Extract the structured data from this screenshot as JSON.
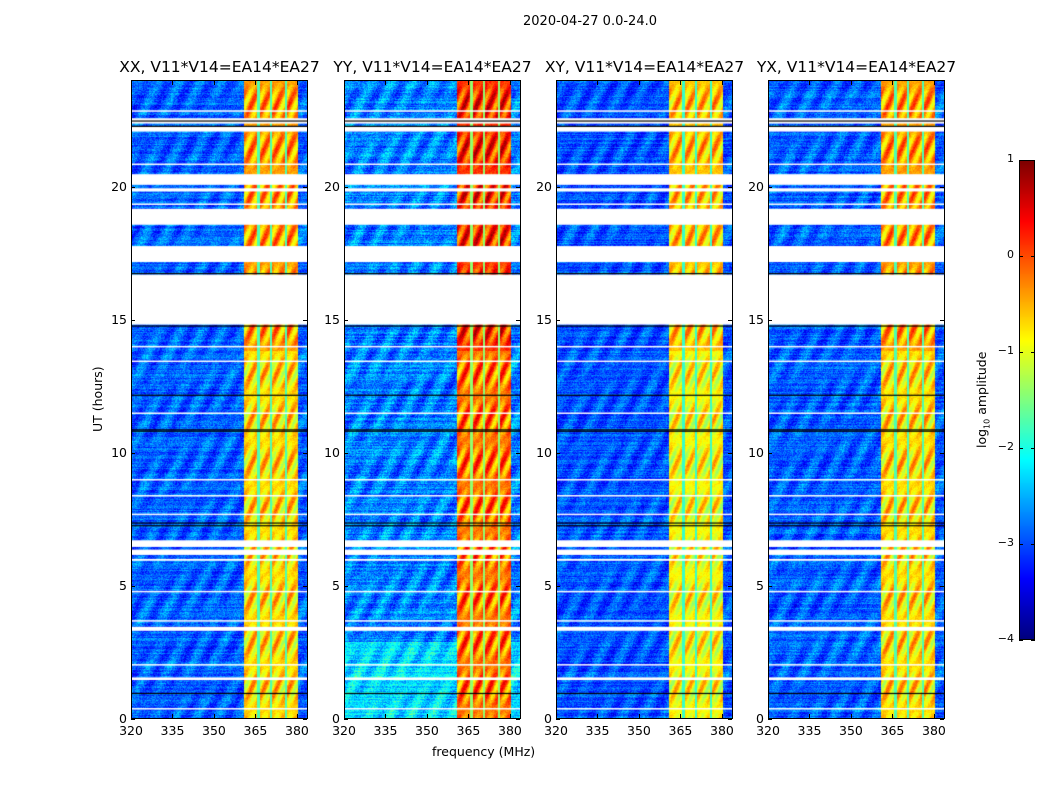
{
  "chart_data": {
    "type": "heatmap",
    "title": "2020-04-27 0.0-24.0",
    "xlabel": "frequency (MHz)",
    "ylabel": "UT (hours)",
    "xlim": [
      320,
      384
    ],
    "ylim": [
      0,
      24
    ],
    "xticks": [
      320,
      335,
      350,
      365,
      380
    ],
    "yticks": [
      0,
      5,
      10,
      15,
      20
    ],
    "panels": [
      {
        "title": "XX, V11*V14=EA14*EA27",
        "level": 1.0
      },
      {
        "title": "YY, V11*V14=EA14*EA27",
        "level": 1.15
      },
      {
        "title": "XY, V11*V14=EA14*EA27",
        "level": 0.95
      },
      {
        "title": "YX, V11*V14=EA14*EA27",
        "level": 1.0
      }
    ],
    "bright_band_mhz": [
      360.4,
      380
    ],
    "band_subchannel_edges_mhz": [
      365.5,
      370,
      375.6
    ],
    "background_log10_amplitude": -2.9,
    "band_log10_amplitude": -0.6,
    "flagged_hours": [
      [
        22.85,
        22.9
      ],
      [
        22.4,
        22.6
      ],
      [
        22.1,
        22.3
      ],
      [
        20.85,
        20.9
      ],
      [
        20.1,
        20.5
      ],
      [
        19.85,
        19.97
      ],
      [
        19.35,
        19.4
      ],
      [
        18.6,
        19.2
      ],
      [
        17.2,
        17.8
      ],
      [
        14.85,
        16.73
      ],
      [
        14.0,
        14.05
      ],
      [
        13.45,
        13.5
      ],
      [
        11.5,
        11.55
      ],
      [
        9.0,
        9.05
      ],
      [
        8.4,
        8.45
      ],
      [
        7.7,
        7.75
      ],
      [
        6.5,
        6.75
      ],
      [
        6.2,
        6.4
      ],
      [
        5.98,
        6.05
      ],
      [
        4.8,
        4.85
      ],
      [
        3.7,
        3.75
      ],
      [
        3.35,
        3.5
      ],
      [
        2.05,
        2.1
      ],
      [
        1.5,
        1.6
      ],
      [
        0.4,
        0.45
      ]
    ],
    "black_lines_hours": [
      22.5,
      22.3,
      16.77,
      14.8,
      12.2,
      10.9,
      10.85,
      7.4,
      7.3,
      1.0
    ],
    "colorbar": {
      "label": "log10 amplitude",
      "label_main": "log",
      "label_sub": "10",
      "label_rest": " amplitude",
      "range": [
        -4,
        1
      ],
      "ticks": [
        "1",
        "0",
        "−1",
        "−2",
        "−3",
        "−4"
      ],
      "colormap": "jet"
    }
  }
}
